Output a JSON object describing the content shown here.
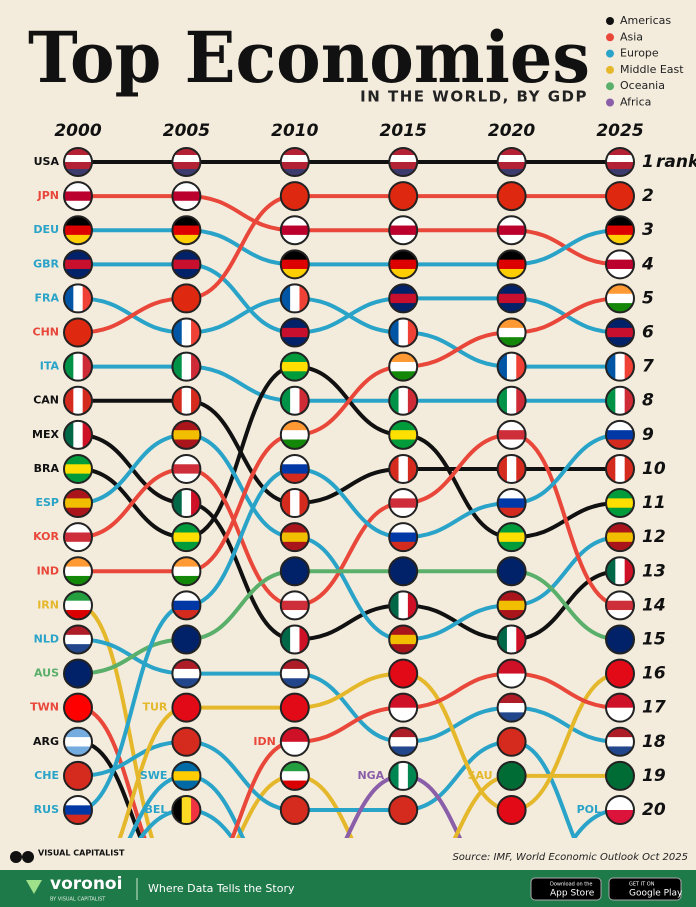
{
  "chart_data": {
    "type": "bump",
    "title": "Top Economies",
    "subtitle": "IN THE WORLD, BY GDP",
    "categories": [
      "2000",
      "2005",
      "2010",
      "2015",
      "2020",
      "2025"
    ],
    "ylim": [
      1,
      20
    ],
    "yticks": [
      1,
      2,
      3,
      4,
      5,
      6,
      7,
      8,
      9,
      10,
      11,
      12,
      13,
      14,
      15,
      16,
      17,
      18,
      19,
      20
    ],
    "y_axis_label": "rank",
    "regions": [
      {
        "name": "Americas",
        "color": "#111111"
      },
      {
        "name": "Asia",
        "color": "#e8473a"
      },
      {
        "name": "Europe",
        "color": "#2aa3c8"
      },
      {
        "name": "Middle East",
        "color": "#e5b82c"
      },
      {
        "name": "Oceania",
        "color": "#5aaf6a"
      },
      {
        "name": "Africa",
        "color": "#8a5ea8"
      }
    ],
    "series": [
      {
        "name": "USA",
        "region": "Americas",
        "flag": [
          "#b22234",
          "#ffffff",
          "#b22234",
          "#3c3b6e"
        ],
        "values": [
          1,
          1,
          1,
          1,
          1,
          1
        ]
      },
      {
        "name": "JPN",
        "region": "Asia",
        "flag": [
          "#ffffff",
          "#bc002d",
          "#ffffff"
        ],
        "values": [
          2,
          2,
          3,
          3,
          3,
          4
        ]
      },
      {
        "name": "DEU",
        "region": "Europe",
        "flag": [
          "#000000",
          "#dd0000",
          "#ffce00"
        ],
        "values": [
          3,
          3,
          4,
          4,
          4,
          3
        ]
      },
      {
        "name": "GBR",
        "region": "Europe",
        "flag": [
          "#012169",
          "#c8102e",
          "#012169"
        ],
        "values": [
          4,
          4,
          6,
          5,
          5,
          6
        ]
      },
      {
        "name": "FRA",
        "region": "Europe",
        "flag": [
          "#0055a4",
          "#ffffff",
          "#ef4135"
        ],
        "flag_orientation": "vertical",
        "values": [
          5,
          6,
          5,
          6,
          7,
          7
        ]
      },
      {
        "name": "CHN",
        "region": "Asia",
        "flag": [
          "#de2910",
          "#de2910"
        ],
        "values": [
          6,
          5,
          2,
          2,
          2,
          2
        ]
      },
      {
        "name": "ITA",
        "region": "Europe",
        "flag": [
          "#009246",
          "#ffffff",
          "#ce2b37"
        ],
        "flag_orientation": "vertical",
        "values": [
          7,
          7,
          8,
          8,
          8,
          8
        ]
      },
      {
        "name": "CAN",
        "region": "Americas",
        "flag": [
          "#d52b1e",
          "#ffffff",
          "#d52b1e"
        ],
        "flag_orientation": "vertical",
        "values": [
          8,
          8,
          11,
          10,
          10,
          10
        ]
      },
      {
        "name": "MEX",
        "region": "Americas",
        "flag": [
          "#006847",
          "#ffffff",
          "#ce1126"
        ],
        "flag_orientation": "vertical",
        "values": [
          9,
          11,
          15,
          14,
          15,
          13
        ]
      },
      {
        "name": "BRA",
        "region": "Americas",
        "flag": [
          "#009c3b",
          "#ffdf00",
          "#009c3b"
        ],
        "values": [
          10,
          12,
          7,
          9,
          12,
          11
        ]
      },
      {
        "name": "ESP",
        "region": "Europe",
        "flag": [
          "#aa151b",
          "#f1bf00",
          "#aa151b"
        ],
        "values": [
          11,
          9,
          12,
          15,
          14,
          12
        ]
      },
      {
        "name": "KOR",
        "region": "Asia",
        "flag": [
          "#ffffff",
          "#cd2e3a",
          "#ffffff"
        ],
        "values": [
          12,
          10,
          14,
          11,
          9,
          14
        ]
      },
      {
        "name": "IND",
        "region": "Asia",
        "flag": [
          "#ff9933",
          "#ffffff",
          "#138808"
        ],
        "values": [
          13,
          13,
          9,
          7,
          6,
          5
        ]
      },
      {
        "name": "IRN",
        "region": "Middle East",
        "flag": [
          "#239f40",
          "#ffffff",
          "#da0000"
        ],
        "values": [
          14,
          null,
          19,
          null,
          null,
          null
        ]
      },
      {
        "name": "NLD",
        "region": "Europe",
        "flag": [
          "#ae1c28",
          "#ffffff",
          "#21468b"
        ],
        "values": [
          15,
          16,
          16,
          18,
          17,
          18
        ]
      },
      {
        "name": "AUS",
        "region": "Oceania",
        "flag": [
          "#012169",
          "#012169"
        ],
        "values": [
          16,
          15,
          13,
          13,
          13,
          15
        ]
      },
      {
        "name": "TWN",
        "region": "Asia",
        "flag": [
          "#fe0000",
          "#fe0000"
        ],
        "values": [
          17,
          null,
          null,
          null,
          null,
          null
        ]
      },
      {
        "name": "ARG",
        "region": "Americas",
        "flag": [
          "#74acdf",
          "#ffffff",
          "#74acdf"
        ],
        "values": [
          18,
          null,
          null,
          null,
          null,
          null
        ]
      },
      {
        "name": "CHE",
        "region": "Europe",
        "flag": [
          "#d52b1e",
          "#d52b1e"
        ],
        "values": [
          19,
          18,
          20,
          20,
          18,
          null
        ]
      },
      {
        "name": "RUS",
        "region": "Europe",
        "flag": [
          "#ffffff",
          "#0039a6",
          "#d52b1e"
        ],
        "values": [
          20,
          14,
          10,
          12,
          11,
          9
        ]
      },
      {
        "name": "TUR",
        "region": "Middle East",
        "flag": [
          "#e30a17",
          "#e30a17"
        ],
        "values": [
          null,
          17,
          17,
          16,
          20,
          16
        ]
      },
      {
        "name": "SWE",
        "region": "Europe",
        "flag": [
          "#006aa7",
          "#fecc00",
          "#006aa7"
        ],
        "values": [
          null,
          19,
          null,
          null,
          null,
          null
        ]
      },
      {
        "name": "BEL",
        "region": "Europe",
        "flag": [
          "#000000",
          "#fdda24",
          "#ef3340"
        ],
        "flag_orientation": "vertical",
        "values": [
          null,
          20,
          null,
          null,
          null,
          null
        ]
      },
      {
        "name": "IDN",
        "region": "Asia",
        "flag": [
          "#ce1126",
          "#ffffff"
        ],
        "values": [
          null,
          null,
          18,
          17,
          16,
          17
        ]
      },
      {
        "name": "NGA",
        "region": "Africa",
        "flag": [
          "#008751",
          "#ffffff",
          "#008751"
        ],
        "flag_orientation": "vertical",
        "values": [
          null,
          null,
          null,
          19,
          null,
          null
        ]
      },
      {
        "name": "SAU",
        "region": "Middle East",
        "flag": [
          "#006c35",
          "#006c35"
        ],
        "values": [
          null,
          null,
          null,
          null,
          19,
          19
        ]
      },
      {
        "name": "POL",
        "region": "Europe",
        "flag": [
          "#ffffff",
          "#dc143c"
        ],
        "values": [
          null,
          null,
          null,
          null,
          null,
          20
        ]
      }
    ]
  },
  "footer": {
    "source": "Source: IMF, World Economic Outlook Oct 2025",
    "brand": "VISUAL CAPITALIST",
    "banner_brand": "voronoi",
    "banner_sub": "BY VISUAL CAPITALIST",
    "tagline": "Where Data Tells the Story",
    "app_store": [
      "Download on the",
      "App Store"
    ],
    "google_play": [
      "GET IT ON",
      "Google Play"
    ]
  }
}
